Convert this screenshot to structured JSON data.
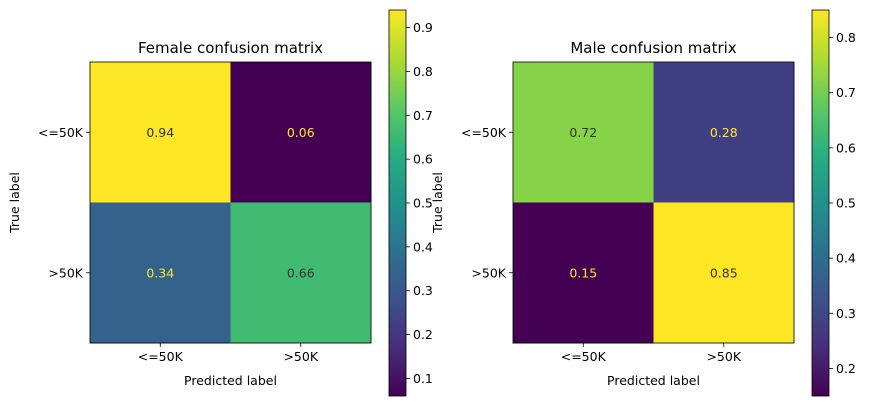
{
  "chart_data": [
    {
      "type": "heatmap",
      "title": "Female confusion matrix",
      "xlabel": "Predicted label",
      "ylabel": "True label",
      "x_categories": [
        "<=50K",
        ">50K"
      ],
      "y_categories": [
        "<=50K",
        ">50K"
      ],
      "values": [
        [
          0.94,
          0.06
        ],
        [
          0.34,
          0.66
        ]
      ],
      "cell_labels": [
        [
          "0.94",
          "0.06"
        ],
        [
          "0.34",
          "0.66"
        ]
      ],
      "colormap": "viridis",
      "colorbar": {
        "range": [
          0.06,
          0.94
        ],
        "ticks": [
          0.1,
          0.2,
          0.3,
          0.4,
          0.5,
          0.6,
          0.7,
          0.8,
          0.9
        ],
        "tick_labels": [
          "0.1",
          "0.2",
          "0.3",
          "0.4",
          "0.5",
          "0.6",
          "0.7",
          "0.8",
          "0.9"
        ]
      }
    },
    {
      "type": "heatmap",
      "title": "Male confusion matrix",
      "xlabel": "Predicted label",
      "ylabel": "True label",
      "x_categories": [
        "<=50K",
        ">50K"
      ],
      "y_categories": [
        "<=50K",
        ">50K"
      ],
      "values": [
        [
          0.72,
          0.28
        ],
        [
          0.15,
          0.85
        ]
      ],
      "cell_labels": [
        [
          "0.72",
          "0.28"
        ],
        [
          "0.15",
          "0.85"
        ]
      ],
      "colormap": "viridis",
      "colorbar": {
        "range": [
          0.15,
          0.85
        ],
        "ticks": [
          0.2,
          0.3,
          0.4,
          0.5,
          0.6,
          0.7,
          0.8
        ],
        "tick_labels": [
          "0.2",
          "0.3",
          "0.4",
          "0.5",
          "0.6",
          "0.7",
          "0.8"
        ]
      }
    }
  ]
}
